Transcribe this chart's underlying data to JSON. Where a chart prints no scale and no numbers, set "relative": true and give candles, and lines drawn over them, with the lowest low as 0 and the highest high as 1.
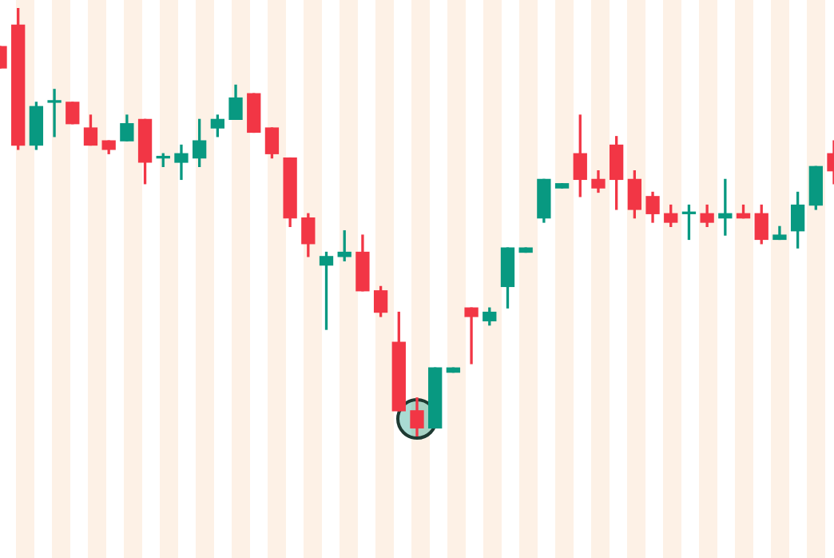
{
  "chart_data": {
    "type": "candlestick",
    "relative": true,
    "categories": [
      null,
      null,
      null,
      null,
      null,
      null,
      null,
      null,
      null,
      null,
      null,
      null,
      null,
      null,
      null,
      null,
      null,
      null,
      null,
      null,
      null,
      null,
      null,
      null,
      null,
      null,
      null,
      null,
      null,
      null,
      null,
      null,
      null,
      null,
      null,
      null,
      null,
      null,
      null,
      null,
      null,
      null,
      null,
      null,
      null,
      null,
      null
    ],
    "ohlc": [
      [
        0.91,
        0.91,
        0.86,
        0.86
      ],
      [
        0.96,
        1.0,
        0.67,
        0.68
      ],
      [
        0.68,
        0.78,
        0.67,
        0.77
      ],
      [
        0.78,
        0.81,
        0.7,
        0.78
      ],
      [
        0.78,
        0.78,
        0.73,
        0.73
      ],
      [
        0.72,
        0.75,
        0.68,
        0.68
      ],
      [
        0.69,
        0.69,
        0.66,
        0.67
      ],
      [
        0.69,
        0.75,
        0.69,
        0.73
      ],
      [
        0.74,
        0.74,
        0.59,
        0.64
      ],
      [
        0.65,
        0.66,
        0.63,
        0.65
      ],
      [
        0.64,
        0.68,
        0.6,
        0.66
      ],
      [
        0.65,
        0.74,
        0.63,
        0.69
      ],
      [
        0.72,
        0.75,
        0.7,
        0.74
      ],
      [
        0.74,
        0.82,
        0.74,
        0.79
      ],
      [
        0.8,
        0.8,
        0.71,
        0.71
      ],
      [
        0.72,
        0.72,
        0.65,
        0.66
      ],
      [
        0.65,
        0.65,
        0.49,
        0.51
      ],
      [
        0.51,
        0.52,
        0.42,
        0.45
      ],
      [
        0.4,
        0.43,
        0.25,
        0.42
      ],
      [
        0.42,
        0.48,
        0.41,
        0.43
      ],
      [
        0.43,
        0.47,
        0.34,
        0.34
      ],
      [
        0.34,
        0.35,
        0.28,
        0.29
      ],
      [
        0.22,
        0.29,
        0.06,
        0.06
      ],
      [
        0.06,
        0.09,
        0.0,
        0.02
      ],
      [
        0.02,
        0.16,
        0.02,
        0.16
      ],
      [
        0.15,
        0.16,
        0.15,
        0.16
      ],
      [
        0.3,
        0.3,
        0.17,
        0.28
      ],
      [
        0.27,
        0.3,
        0.26,
        0.29
      ],
      [
        0.35,
        0.44,
        0.3,
        0.44
      ],
      [
        0.43,
        0.44,
        0.43,
        0.44
      ],
      [
        0.51,
        0.6,
        0.5,
        0.6
      ],
      [
        0.58,
        0.59,
        0.58,
        0.59
      ],
      [
        0.66,
        0.75,
        0.56,
        0.6
      ],
      [
        0.6,
        0.62,
        0.57,
        0.58
      ],
      [
        0.68,
        0.7,
        0.53,
        0.6
      ],
      [
        0.6,
        0.62,
        0.51,
        0.53
      ],
      [
        0.56,
        0.57,
        0.5,
        0.52
      ],
      [
        0.52,
        0.54,
        0.49,
        0.5
      ],
      [
        0.52,
        0.54,
        0.46,
        0.52
      ],
      [
        0.52,
        0.54,
        0.49,
        0.5
      ],
      [
        0.51,
        0.6,
        0.47,
        0.52
      ],
      [
        0.52,
        0.54,
        0.51,
        0.51
      ],
      [
        0.52,
        0.54,
        0.45,
        0.46
      ],
      [
        0.46,
        0.49,
        0.46,
        0.47
      ],
      [
        0.48,
        0.57,
        0.44,
        0.54
      ],
      [
        0.54,
        0.63,
        0.53,
        0.63
      ],
      [
        0.66,
        0.69,
        0.59,
        0.62
      ]
    ]
  }
}
